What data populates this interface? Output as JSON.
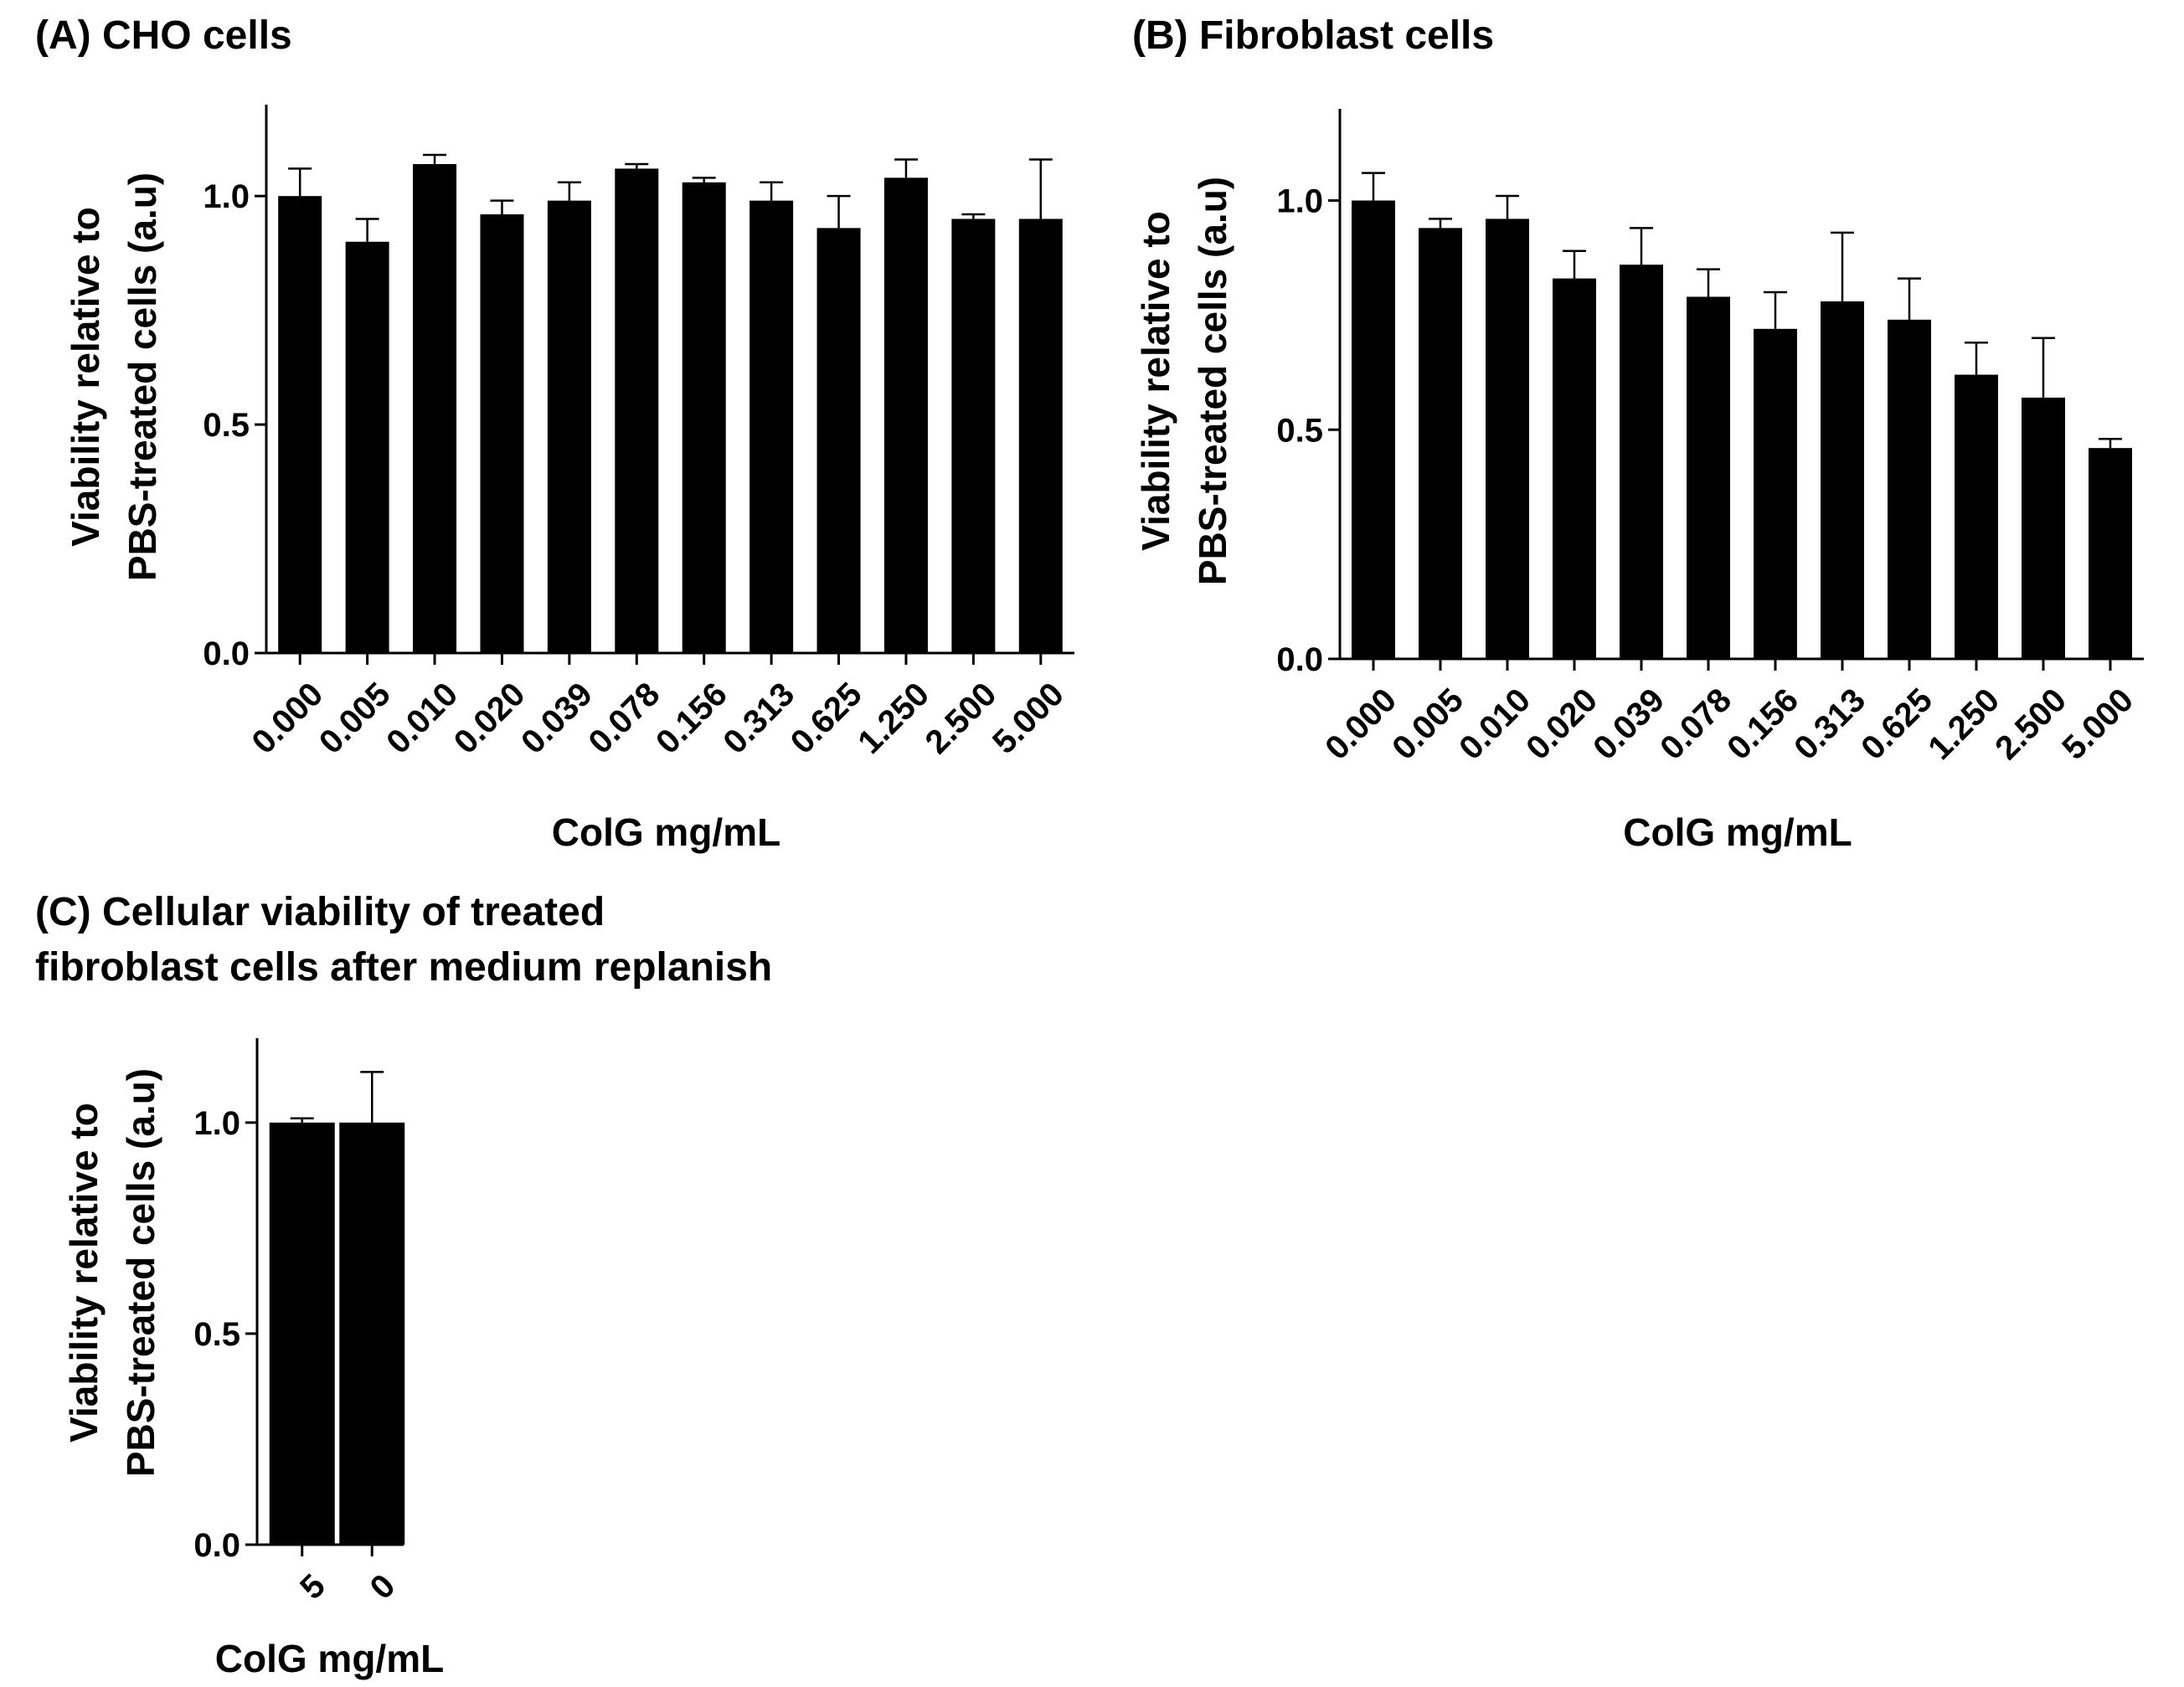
{
  "chart_data": [
    {
      "type": "bar",
      "title": "(A) CHO cells",
      "title_lines": [
        "(A) CHO cells"
      ],
      "xlabel": "ColG mg/mL",
      "ylabel_lines": [
        "Viability relative to",
        "PBS-treated cells (a.u)"
      ],
      "ylim": [
        0,
        1.2
      ],
      "yticks": [
        0.0,
        0.5,
        1.0
      ],
      "ytick_labels": [
        "0.0",
        "0.5",
        "1.0"
      ],
      "categories": [
        "0.000",
        "0.005",
        "0.010",
        "0.020",
        "0.039",
        "0.078",
        "0.156",
        "0.313",
        "0.625",
        "1.250",
        "2.500",
        "5.000"
      ],
      "values": [
        1.0,
        0.9,
        1.07,
        0.96,
        0.99,
        1.06,
        1.03,
        0.99,
        0.93,
        1.04,
        0.95,
        0.95
      ],
      "errors": [
        0.06,
        0.05,
        0.02,
        0.03,
        0.04,
        0.01,
        0.01,
        0.04,
        0.07,
        0.04,
        0.01,
        0.13
      ]
    },
    {
      "type": "bar",
      "title": "(B) Fibroblast cells",
      "title_lines": [
        "(B) Fibroblast cells"
      ],
      "xlabel": "ColG mg/mL",
      "ylabel_lines": [
        "Viability relative to",
        "PBS-treated cells (a.u)"
      ],
      "ylim": [
        0,
        1.2
      ],
      "yticks": [
        0.0,
        0.5,
        1.0
      ],
      "ytick_labels": [
        "0.0",
        "0.5",
        "1.0"
      ],
      "categories": [
        "0.000",
        "0.005",
        "0.010",
        "0.020",
        "0.039",
        "0.078",
        "0.156",
        "0.313",
        "0.625",
        "1.250",
        "2.500",
        "5.000"
      ],
      "values": [
        1.0,
        0.94,
        0.96,
        0.83,
        0.86,
        0.79,
        0.72,
        0.78,
        0.74,
        0.62,
        0.57,
        0.46
      ],
      "errors": [
        0.06,
        0.02,
        0.05,
        0.06,
        0.08,
        0.06,
        0.08,
        0.15,
        0.09,
        0.07,
        0.13,
        0.02
      ]
    },
    {
      "type": "bar",
      "title": "(C) Cellular viability of treated fibroblast cells after medium replanish",
      "title_lines": [
        "(C) Cellular viability of treated",
        "fibroblast cells after medium replanish"
      ],
      "xlabel": "ColG mg/mL",
      "ylabel_lines": [
        "Viability relative to",
        "PBS-treated cells (a.u)"
      ],
      "ylim": [
        0,
        1.2
      ],
      "yticks": [
        0.0,
        0.5,
        1.0
      ],
      "ytick_labels": [
        "0.0",
        "0.5",
        "1.0"
      ],
      "categories": [
        "5",
        "0"
      ],
      "values": [
        1.0,
        1.0
      ],
      "errors": [
        0.01,
        0.12
      ]
    }
  ]
}
